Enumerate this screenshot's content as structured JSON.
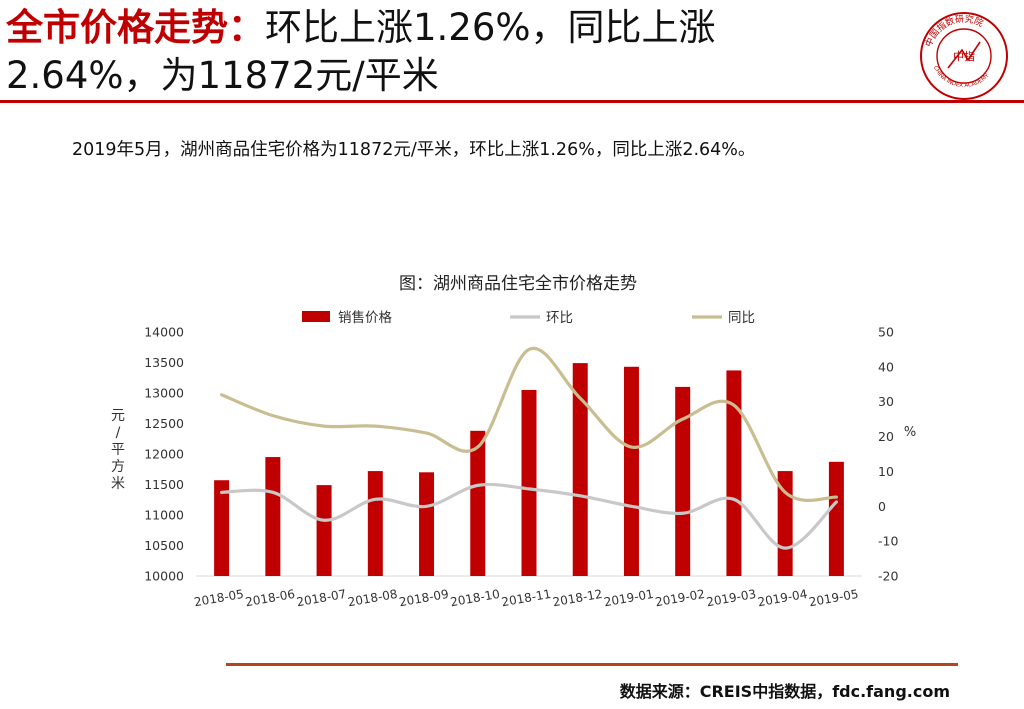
{
  "header": {
    "title_highlight": "全市价格走势：",
    "title_rest_line1": "环比上涨1.26%，同比上涨",
    "title_line2": "2.64%，为11872元/平米",
    "logo_center_text": "中指",
    "logo_ring_text": "中国指数研究院",
    "logo_ring_text_en": "CHINA INDEX ACADEMY"
  },
  "summary": "2019年5月，湖州商品住宅价格为11872元/平米，环比上涨1.26%，同比上涨2.64%。",
  "footer": {
    "source": "数据来源：CREIS中指数据，fdc.fang.com"
  },
  "colors": {
    "bar": "#c00000",
    "mom_line": "#c8c8c8",
    "yoy_line": "#c9bd92",
    "accent": "#c00000"
  },
  "chart_data": {
    "type": "bar",
    "title": "图：湖州商品住宅全市价格走势",
    "categories": [
      "2018-05",
      "2018-06",
      "2018-07",
      "2018-08",
      "2018-09",
      "2018-10",
      "2018-11",
      "2018-12",
      "2019-01",
      "2019-02",
      "2019-03",
      "2019-04",
      "2019-05"
    ],
    "y_left": {
      "label_chars": [
        "元",
        "/",
        "平",
        "方",
        "米"
      ],
      "min": 10000,
      "max": 14000,
      "step": 500
    },
    "y_right": {
      "label": "%",
      "min": -20,
      "max": 50,
      "step": 10
    },
    "series": [
      {
        "name": "销售价格",
        "kind": "bar",
        "axis": "left",
        "values": [
          11570,
          11950,
          11490,
          11720,
          11700,
          12380,
          13050,
          13490,
          13430,
          13100,
          13370,
          11720,
          11872
        ]
      },
      {
        "name": "环比",
        "kind": "line",
        "axis": "right",
        "values": [
          4,
          4,
          -4,
          2,
          0,
          6,
          5,
          3,
          0,
          -2,
          2,
          -12,
          1.26
        ]
      },
      {
        "name": "同比",
        "kind": "line",
        "axis": "right",
        "values": [
          32,
          26,
          23,
          23,
          21,
          17,
          45,
          31,
          17,
          25,
          29,
          4,
          2.64
        ]
      }
    ]
  }
}
